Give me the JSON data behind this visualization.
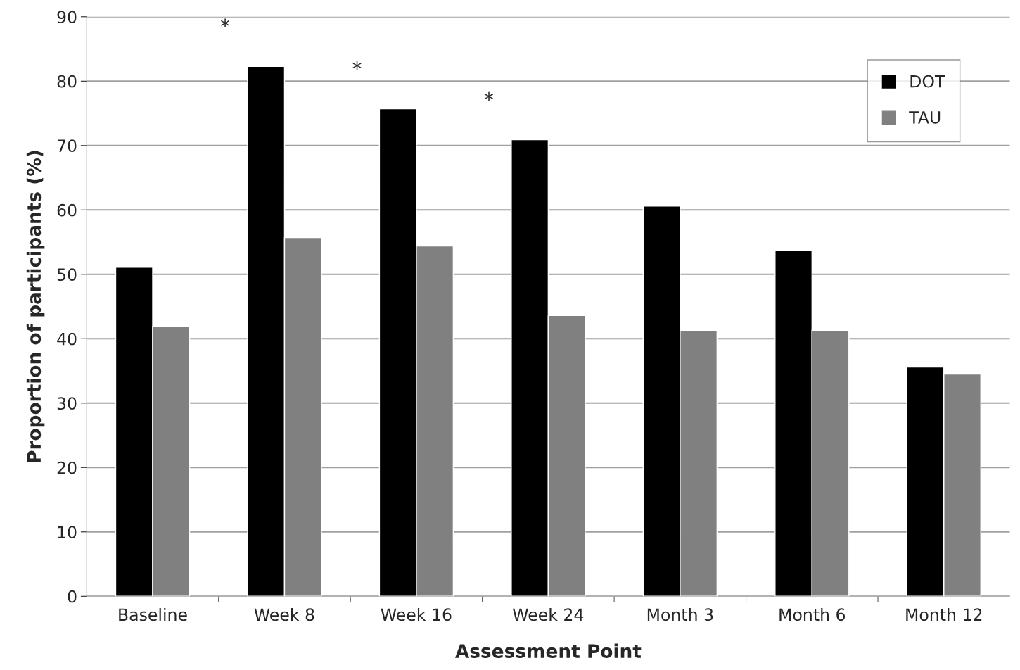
{
  "chart_data": {
    "type": "bar",
    "xlabel": "Assessment Point",
    "ylabel": "Proportion of participants (%)",
    "categories": [
      "Baseline",
      "Week 8",
      "Week 16",
      "Week 24",
      "Month 3",
      "Month 6",
      "Month 12"
    ],
    "series": [
      {
        "name": "DOT",
        "color": "#000000",
        "values": [
          51.1,
          82.3,
          75.7,
          70.9,
          60.6,
          53.7,
          35.6
        ]
      },
      {
        "name": "TAU",
        "color": "#808080",
        "values": [
          41.9,
          55.7,
          54.4,
          43.6,
          41.3,
          41.3,
          34.5
        ]
      }
    ],
    "ylim": [
      0,
      90
    ],
    "yticks": [
      0,
      10,
      20,
      30,
      40,
      50,
      60,
      70,
      80,
      90
    ],
    "grid": "y",
    "legend": "top right",
    "annotations": [
      "*",
      "*",
      "*"
    ]
  }
}
